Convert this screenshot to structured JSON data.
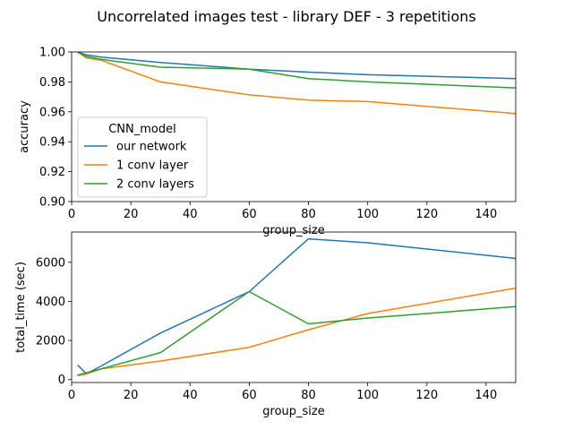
{
  "figure": {
    "title": "Uncorrelated images test - library DEF - 3 repetitions"
  },
  "chart_data": [
    {
      "type": "line",
      "xlabel": "group_size",
      "ylabel": "accuracy",
      "xlim": [
        0,
        150
      ],
      "ylim": [
        0.9,
        1.0
      ],
      "xticks": [
        0,
        20,
        40,
        60,
        80,
        100,
        120,
        140
      ],
      "yticks": [
        0.9,
        0.92,
        0.94,
        0.96,
        0.98,
        1.0
      ],
      "ytick_labels": [
        "0.90",
        "0.92",
        "0.94",
        "0.96",
        "0.98",
        "1.00"
      ],
      "legend": {
        "title": "CNN_model",
        "placement": "lower-left"
      },
      "x": [
        2,
        5,
        10,
        30,
        60,
        80,
        100,
        150
      ],
      "series": [
        {
          "name": "our network",
          "color": "#1f77b4",
          "values": [
            1.0,
            0.998,
            0.9965,
            0.993,
            0.9885,
            0.9865,
            0.9848,
            0.9822
          ]
        },
        {
          "name": "1 conv layer",
          "color": "#ff7f0e",
          "values": [
            1.0,
            0.996,
            0.9945,
            0.98,
            0.9713,
            0.9678,
            0.9668,
            0.9588
          ]
        },
        {
          "name": "2 conv layers",
          "color": "#2ca02c",
          "values": [
            1.0,
            0.997,
            0.995,
            0.9898,
            0.9885,
            0.9822,
            0.98,
            0.976
          ]
        }
      ]
    },
    {
      "type": "line",
      "xlabel": "group_size",
      "ylabel": "total_time (sec)",
      "xlim": [
        0,
        150
      ],
      "ylim": [
        -150,
        7550
      ],
      "xticks": [
        0,
        20,
        40,
        60,
        80,
        100,
        120,
        140
      ],
      "yticks": [
        0,
        2000,
        4000,
        6000
      ],
      "ytick_labels": [
        "0",
        "2000",
        "4000",
        "6000"
      ],
      "x": [
        2,
        5,
        10,
        30,
        60,
        80,
        100,
        150
      ],
      "series": [
        {
          "name": "our network",
          "color": "#1f77b4",
          "values": [
            750,
            300,
            700,
            2380,
            4500,
            7200,
            7000,
            6200
          ]
        },
        {
          "name": "1 conv layer",
          "color": "#ff7f0e",
          "values": [
            200,
            280,
            550,
            950,
            1650,
            2550,
            3380,
            4680
          ]
        },
        {
          "name": "2 conv layers",
          "color": "#2ca02c",
          "values": [
            230,
            350,
            550,
            1380,
            4500,
            2850,
            3150,
            3730
          ]
        }
      ]
    }
  ]
}
